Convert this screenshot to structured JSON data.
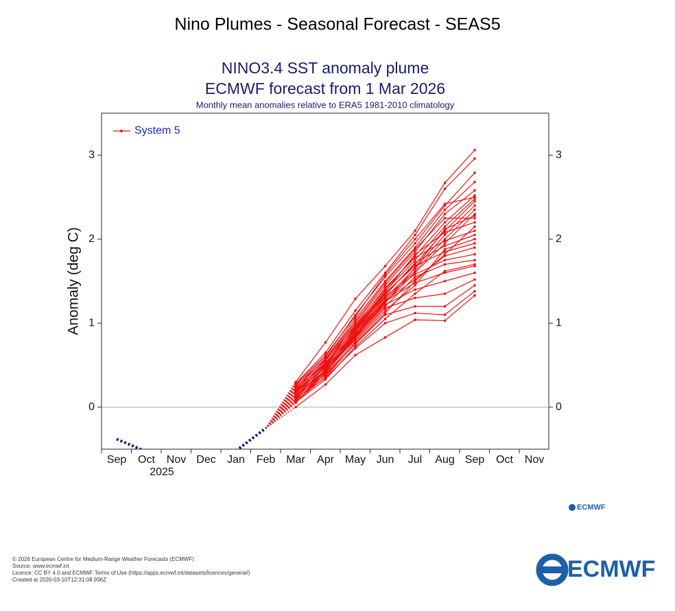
{
  "page_title": "Nino Plumes - Seasonal Forecast - SEAS5",
  "chart_data": {
    "type": "plume",
    "title": "NINO3.4 SST anomaly plume",
    "subtitle": "ECMWF forecast from 1 Mar 2026",
    "note": "Monthly mean anomalies relative to ERA5 1981-2010 climatology",
    "y_label": "Anomaly (deg C)",
    "year_label": "2025",
    "categories": [
      "Sep",
      "Oct",
      "Nov",
      "Dec",
      "Jan",
      "Feb",
      "Mar",
      "Apr",
      "May",
      "Jun",
      "Jul",
      "Aug",
      "Sep",
      "Oct",
      "Nov"
    ],
    "ylim": [
      -0.5,
      3.5
    ],
    "yticks": [
      0,
      1,
      2,
      3
    ],
    "legend": "top-left",
    "observed": {
      "color": "#1a1a6e",
      "values": [
        -0.38,
        -0.53,
        null,
        null,
        -0.52,
        -0.25,
        null,
        null,
        null,
        null,
        null,
        null,
        null,
        null,
        null
      ]
    },
    "series": [
      {
        "name": "System 5",
        "color": "#ee1111",
        "members": [
          [
            null,
            null,
            null,
            null,
            null,
            null,
            0.3,
            0.77,
            1.29,
            1.68,
            2.1,
            2.67,
            3.06,
            null,
            null
          ],
          [
            null,
            null,
            null,
            null,
            null,
            null,
            0.28,
            0.65,
            1.15,
            1.6,
            2.05,
            2.6,
            2.96,
            null,
            null
          ],
          [
            null,
            null,
            null,
            null,
            null,
            null,
            0.25,
            0.6,
            1.1,
            1.55,
            1.95,
            2.4,
            2.79,
            null,
            null
          ],
          [
            null,
            null,
            null,
            null,
            null,
            null,
            0.22,
            0.58,
            1.05,
            1.5,
            1.9,
            2.35,
            2.68,
            null,
            null
          ],
          [
            null,
            null,
            null,
            null,
            null,
            null,
            0.2,
            0.55,
            1.0,
            1.45,
            1.85,
            2.3,
            2.58,
            null,
            null
          ],
          [
            null,
            null,
            null,
            null,
            null,
            null,
            0.18,
            0.52,
            0.98,
            1.4,
            1.8,
            2.2,
            2.52,
            null,
            null
          ],
          [
            null,
            null,
            null,
            null,
            null,
            null,
            0.15,
            0.5,
            0.95,
            1.38,
            1.75,
            2.15,
            2.48,
            null,
            null
          ],
          [
            null,
            null,
            null,
            null,
            null,
            null,
            0.12,
            0.48,
            0.92,
            1.35,
            1.7,
            2.1,
            2.45,
            null,
            null
          ],
          [
            null,
            null,
            null,
            null,
            null,
            null,
            0.1,
            0.45,
            0.9,
            1.3,
            1.65,
            2.05,
            2.4,
            null,
            null
          ],
          [
            null,
            null,
            null,
            null,
            null,
            null,
            0.08,
            0.42,
            0.88,
            1.28,
            1.62,
            2.0,
            2.35,
            null,
            null
          ],
          [
            null,
            null,
            null,
            null,
            null,
            null,
            0.05,
            0.4,
            0.85,
            1.25,
            1.6,
            1.95,
            2.3,
            null,
            null
          ],
          [
            null,
            null,
            null,
            null,
            null,
            null,
            0.0,
            0.27,
            0.62,
            0.83,
            1.04,
            1.03,
            1.33,
            null,
            null
          ],
          [
            null,
            null,
            null,
            null,
            null,
            null,
            0.1,
            0.35,
            0.7,
            1.0,
            1.12,
            1.1,
            1.38,
            null,
            null
          ],
          [
            null,
            null,
            null,
            null,
            null,
            null,
            0.14,
            0.38,
            0.75,
            1.1,
            1.2,
            1.2,
            1.45,
            null,
            null
          ],
          [
            null,
            null,
            null,
            null,
            null,
            null,
            0.16,
            0.44,
            0.8,
            1.18,
            1.3,
            1.35,
            1.52,
            null,
            null
          ],
          [
            null,
            null,
            null,
            null,
            null,
            null,
            0.2,
            0.46,
            0.84,
            1.22,
            1.4,
            1.5,
            1.6,
            null,
            null
          ],
          [
            null,
            null,
            null,
            null,
            null,
            null,
            0.24,
            0.5,
            0.88,
            1.26,
            1.48,
            1.6,
            1.68,
            null,
            null
          ],
          [
            null,
            null,
            null,
            null,
            null,
            null,
            0.13,
            0.41,
            0.82,
            1.2,
            1.55,
            1.7,
            1.75,
            null,
            null
          ],
          [
            null,
            null,
            null,
            null,
            null,
            null,
            0.18,
            0.47,
            0.87,
            1.32,
            1.58,
            1.75,
            1.82,
            null,
            null
          ],
          [
            null,
            null,
            null,
            null,
            null,
            null,
            0.11,
            0.43,
            0.86,
            1.27,
            1.52,
            1.8,
            1.9,
            null,
            null
          ],
          [
            null,
            null,
            null,
            null,
            null,
            null,
            0.21,
            0.53,
            0.93,
            1.36,
            1.68,
            1.85,
            1.95,
            null,
            null
          ],
          [
            null,
            null,
            null,
            null,
            null,
            null,
            0.09,
            0.39,
            0.78,
            1.15,
            1.45,
            1.88,
            2.0,
            null,
            null
          ],
          [
            null,
            null,
            null,
            null,
            null,
            null,
            0.17,
            0.49,
            0.91,
            1.33,
            1.72,
            1.92,
            2.05,
            null,
            null
          ],
          [
            null,
            null,
            null,
            null,
            null,
            null,
            0.26,
            0.56,
            0.96,
            1.42,
            1.78,
            1.98,
            2.1,
            null,
            null
          ],
          [
            null,
            null,
            null,
            null,
            null,
            null,
            0.07,
            0.36,
            0.76,
            1.12,
            1.5,
            1.82,
            2.15,
            null,
            null
          ],
          [
            null,
            null,
            null,
            null,
            null,
            null,
            0.19,
            0.51,
            0.94,
            1.37,
            1.82,
            2.08,
            2.2,
            null,
            null
          ],
          [
            null,
            null,
            null,
            null,
            null,
            null,
            0.23,
            0.57,
            1.02,
            1.48,
            1.88,
            2.25,
            2.25,
            null,
            null
          ],
          [
            null,
            null,
            null,
            null,
            null,
            null,
            0.14,
            0.44,
            0.83,
            1.24,
            1.66,
            2.12,
            2.28,
            null,
            null
          ],
          [
            null,
            null,
            null,
            null,
            null,
            null,
            0.27,
            0.62,
            1.08,
            1.58,
            2.0,
            2.42,
            2.5,
            null,
            null
          ],
          [
            null,
            null,
            null,
            null,
            null,
            null,
            0.06,
            0.33,
            0.72,
            1.05,
            1.35,
            1.62,
            1.7,
            null,
            null
          ]
        ]
      }
    ]
  },
  "logo": "ECMWF",
  "footer": [
    "© 2026 European Centre for Medium-Range Weather Forecasts (ECMWF)",
    "Source: www.ecmwf.int",
    "Licence: CC BY 4.0 and ECMWF Terms of Use (https://apps.ecmwf.int/datasets/licences/general/)",
    "Created at 2026-03-10T12:31:08.936Z"
  ]
}
